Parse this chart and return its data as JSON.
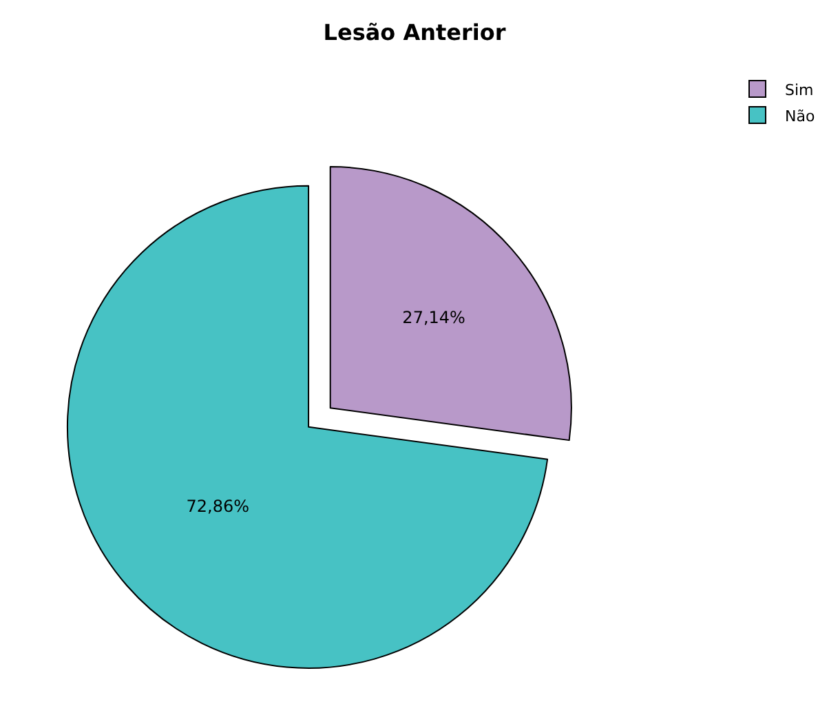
{
  "chart_data": {
    "type": "pie",
    "title": "Lesão Anterior",
    "categories": [
      "Sim",
      "Não"
    ],
    "values": [
      27.14,
      72.86
    ],
    "colors": [
      "#b899c9",
      "#47c2c4"
    ],
    "value_labels": [
      "27,14%",
      "72,86%"
    ],
    "legend": "top right"
  }
}
